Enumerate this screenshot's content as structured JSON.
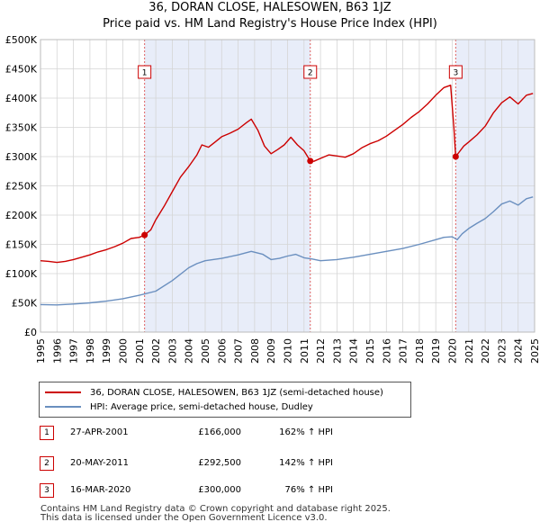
{
  "chart_data": {
    "type": "line",
    "title": "36, DORAN CLOSE, HALESOWEN, B63 1JZ",
    "subtitle": "Price paid vs. HM Land Registry's House Price Index (HPI)",
    "xlabel": "",
    "ylabel": "",
    "xlim": [
      1995,
      2025
    ],
    "ylim": [
      0,
      500000
    ],
    "grid": true,
    "x_ticks": [
      "1995",
      "1996",
      "1997",
      "1998",
      "1999",
      "2000",
      "2001",
      "2002",
      "2003",
      "2004",
      "2005",
      "2006",
      "2007",
      "2008",
      "2009",
      "2010",
      "2011",
      "2012",
      "2013",
      "2014",
      "2015",
      "2016",
      "2017",
      "2018",
      "2019",
      "2020",
      "2021",
      "2022",
      "2023",
      "2024",
      "2025"
    ],
    "y_ticks": [
      {
        "value": 0,
        "label": "£0"
      },
      {
        "value": 50000,
        "label": "£50K"
      },
      {
        "value": 100000,
        "label": "£100K"
      },
      {
        "value": 150000,
        "label": "£150K"
      },
      {
        "value": 200000,
        "label": "£200K"
      },
      {
        "value": 250000,
        "label": "£250K"
      },
      {
        "value": 300000,
        "label": "£300K"
      },
      {
        "value": 350000,
        "label": "£350K"
      },
      {
        "value": 400000,
        "label": "£400K"
      },
      {
        "value": 450000,
        "label": "£450K"
      },
      {
        "value": 500000,
        "label": "£500K"
      }
    ],
    "shaded_spans": [
      [
        2001.32,
        2011.38
      ],
      [
        2020.21,
        2025.0
      ]
    ],
    "series": [
      {
        "name": "36, DORAN CLOSE, HALESOWEN, B63 1JZ (semi-detached house)",
        "color": "#cc0000",
        "x": [
          1995.0,
          1995.5,
          1996.0,
          1996.5,
          1997.0,
          1997.5,
          1998.0,
          1998.5,
          1999.0,
          1999.5,
          2000.0,
          2000.5,
          2001.0,
          2001.32,
          2001.7,
          2002.0,
          2002.5,
          2003.0,
          2003.5,
          2004.0,
          2004.5,
          2004.8,
          2005.2,
          2005.6,
          2006.0,
          2006.5,
          2007.0,
          2007.5,
          2007.8,
          2008.2,
          2008.6,
          2009.0,
          2009.4,
          2009.8,
          2010.2,
          2010.6,
          2011.0,
          2011.38,
          2011.6,
          2012.0,
          2012.5,
          2013.0,
          2013.5,
          2014.0,
          2014.5,
          2015.0,
          2015.5,
          2016.0,
          2016.5,
          2017.0,
          2017.5,
          2018.0,
          2018.5,
          2019.0,
          2019.5,
          2019.9,
          2020.1,
          2020.21,
          2020.4,
          2020.7,
          2021.0,
          2021.5,
          2022.0,
          2022.5,
          2023.0,
          2023.5,
          2024.0,
          2024.5,
          2024.9
        ],
        "values": [
          122000,
          121000,
          119000,
          121000,
          124000,
          128000,
          132000,
          137000,
          141000,
          146000,
          152000,
          160000,
          162000,
          166000,
          175000,
          192000,
          215000,
          240000,
          265000,
          283000,
          303000,
          320000,
          316000,
          325000,
          334000,
          340000,
          347000,
          358000,
          364000,
          345000,
          318000,
          305000,
          312000,
          320000,
          333000,
          320000,
          310000,
          292500,
          292000,
          297000,
          303000,
          301000,
          299000,
          305000,
          315000,
          322000,
          327000,
          335000,
          345000,
          355000,
          367000,
          377000,
          390000,
          405000,
          418000,
          422000,
          350000,
          300000,
          307000,
          318000,
          325000,
          337000,
          352000,
          375000,
          392000,
          402000,
          390000,
          405000,
          408000
        ]
      },
      {
        "name": "HPI: Average price, semi-detached house, Dudley",
        "color": "#6a8fbf",
        "x": [
          1995.0,
          1996.0,
          1997.0,
          1998.0,
          1999.0,
          2000.0,
          2001.0,
          2002.0,
          2003.0,
          2004.0,
          2004.5,
          2005.0,
          2006.0,
          2007.0,
          2007.8,
          2008.5,
          2009.0,
          2009.5,
          2010.0,
          2010.5,
          2011.0,
          2011.5,
          2012.0,
          2013.0,
          2014.0,
          2015.0,
          2016.0,
          2017.0,
          2018.0,
          2019.0,
          2019.5,
          2020.0,
          2020.3,
          2020.6,
          2021.0,
          2021.5,
          2022.0,
          2022.5,
          2023.0,
          2023.5,
          2024.0,
          2024.5,
          2024.9
        ],
        "values": [
          47000,
          46500,
          48000,
          50000,
          53000,
          57000,
          63000,
          70000,
          88000,
          110000,
          117000,
          122000,
          126000,
          132000,
          138000,
          133000,
          124000,
          126000,
          130000,
          133000,
          127000,
          125000,
          122000,
          124000,
          128000,
          133000,
          138000,
          143000,
          150000,
          158000,
          162000,
          163000,
          158000,
          168000,
          177000,
          186000,
          194000,
          206000,
          219000,
          224000,
          217000,
          228000,
          231000
        ]
      }
    ],
    "sales": [
      {
        "label": "1",
        "x": 2001.32,
        "value": 166000
      },
      {
        "label": "2",
        "x": 2011.38,
        "value": 292500
      },
      {
        "label": "3",
        "x": 2020.21,
        "value": 300000
      }
    ]
  },
  "legend": {
    "property": "36, DORAN CLOSE, HALESOWEN, B63 1JZ (semi-detached house)",
    "hpi": "HPI: Average price, semi-detached house, Dudley"
  },
  "sales_table": [
    {
      "num": "1",
      "date": "27-APR-2001",
      "price": "£166,000",
      "hpi": "162% ↑ HPI"
    },
    {
      "num": "2",
      "date": "20-MAY-2011",
      "price": "£292,500",
      "hpi": "142% ↑ HPI"
    },
    {
      "num": "3",
      "date": "16-MAR-2020",
      "price": "£300,000",
      "hpi": "76% ↑ HPI"
    }
  ],
  "footer": {
    "line1": "Contains HM Land Registry data © Crown copyright and database right 2025.",
    "line2": "This data is licensed under the Open Government Licence v3.0."
  }
}
